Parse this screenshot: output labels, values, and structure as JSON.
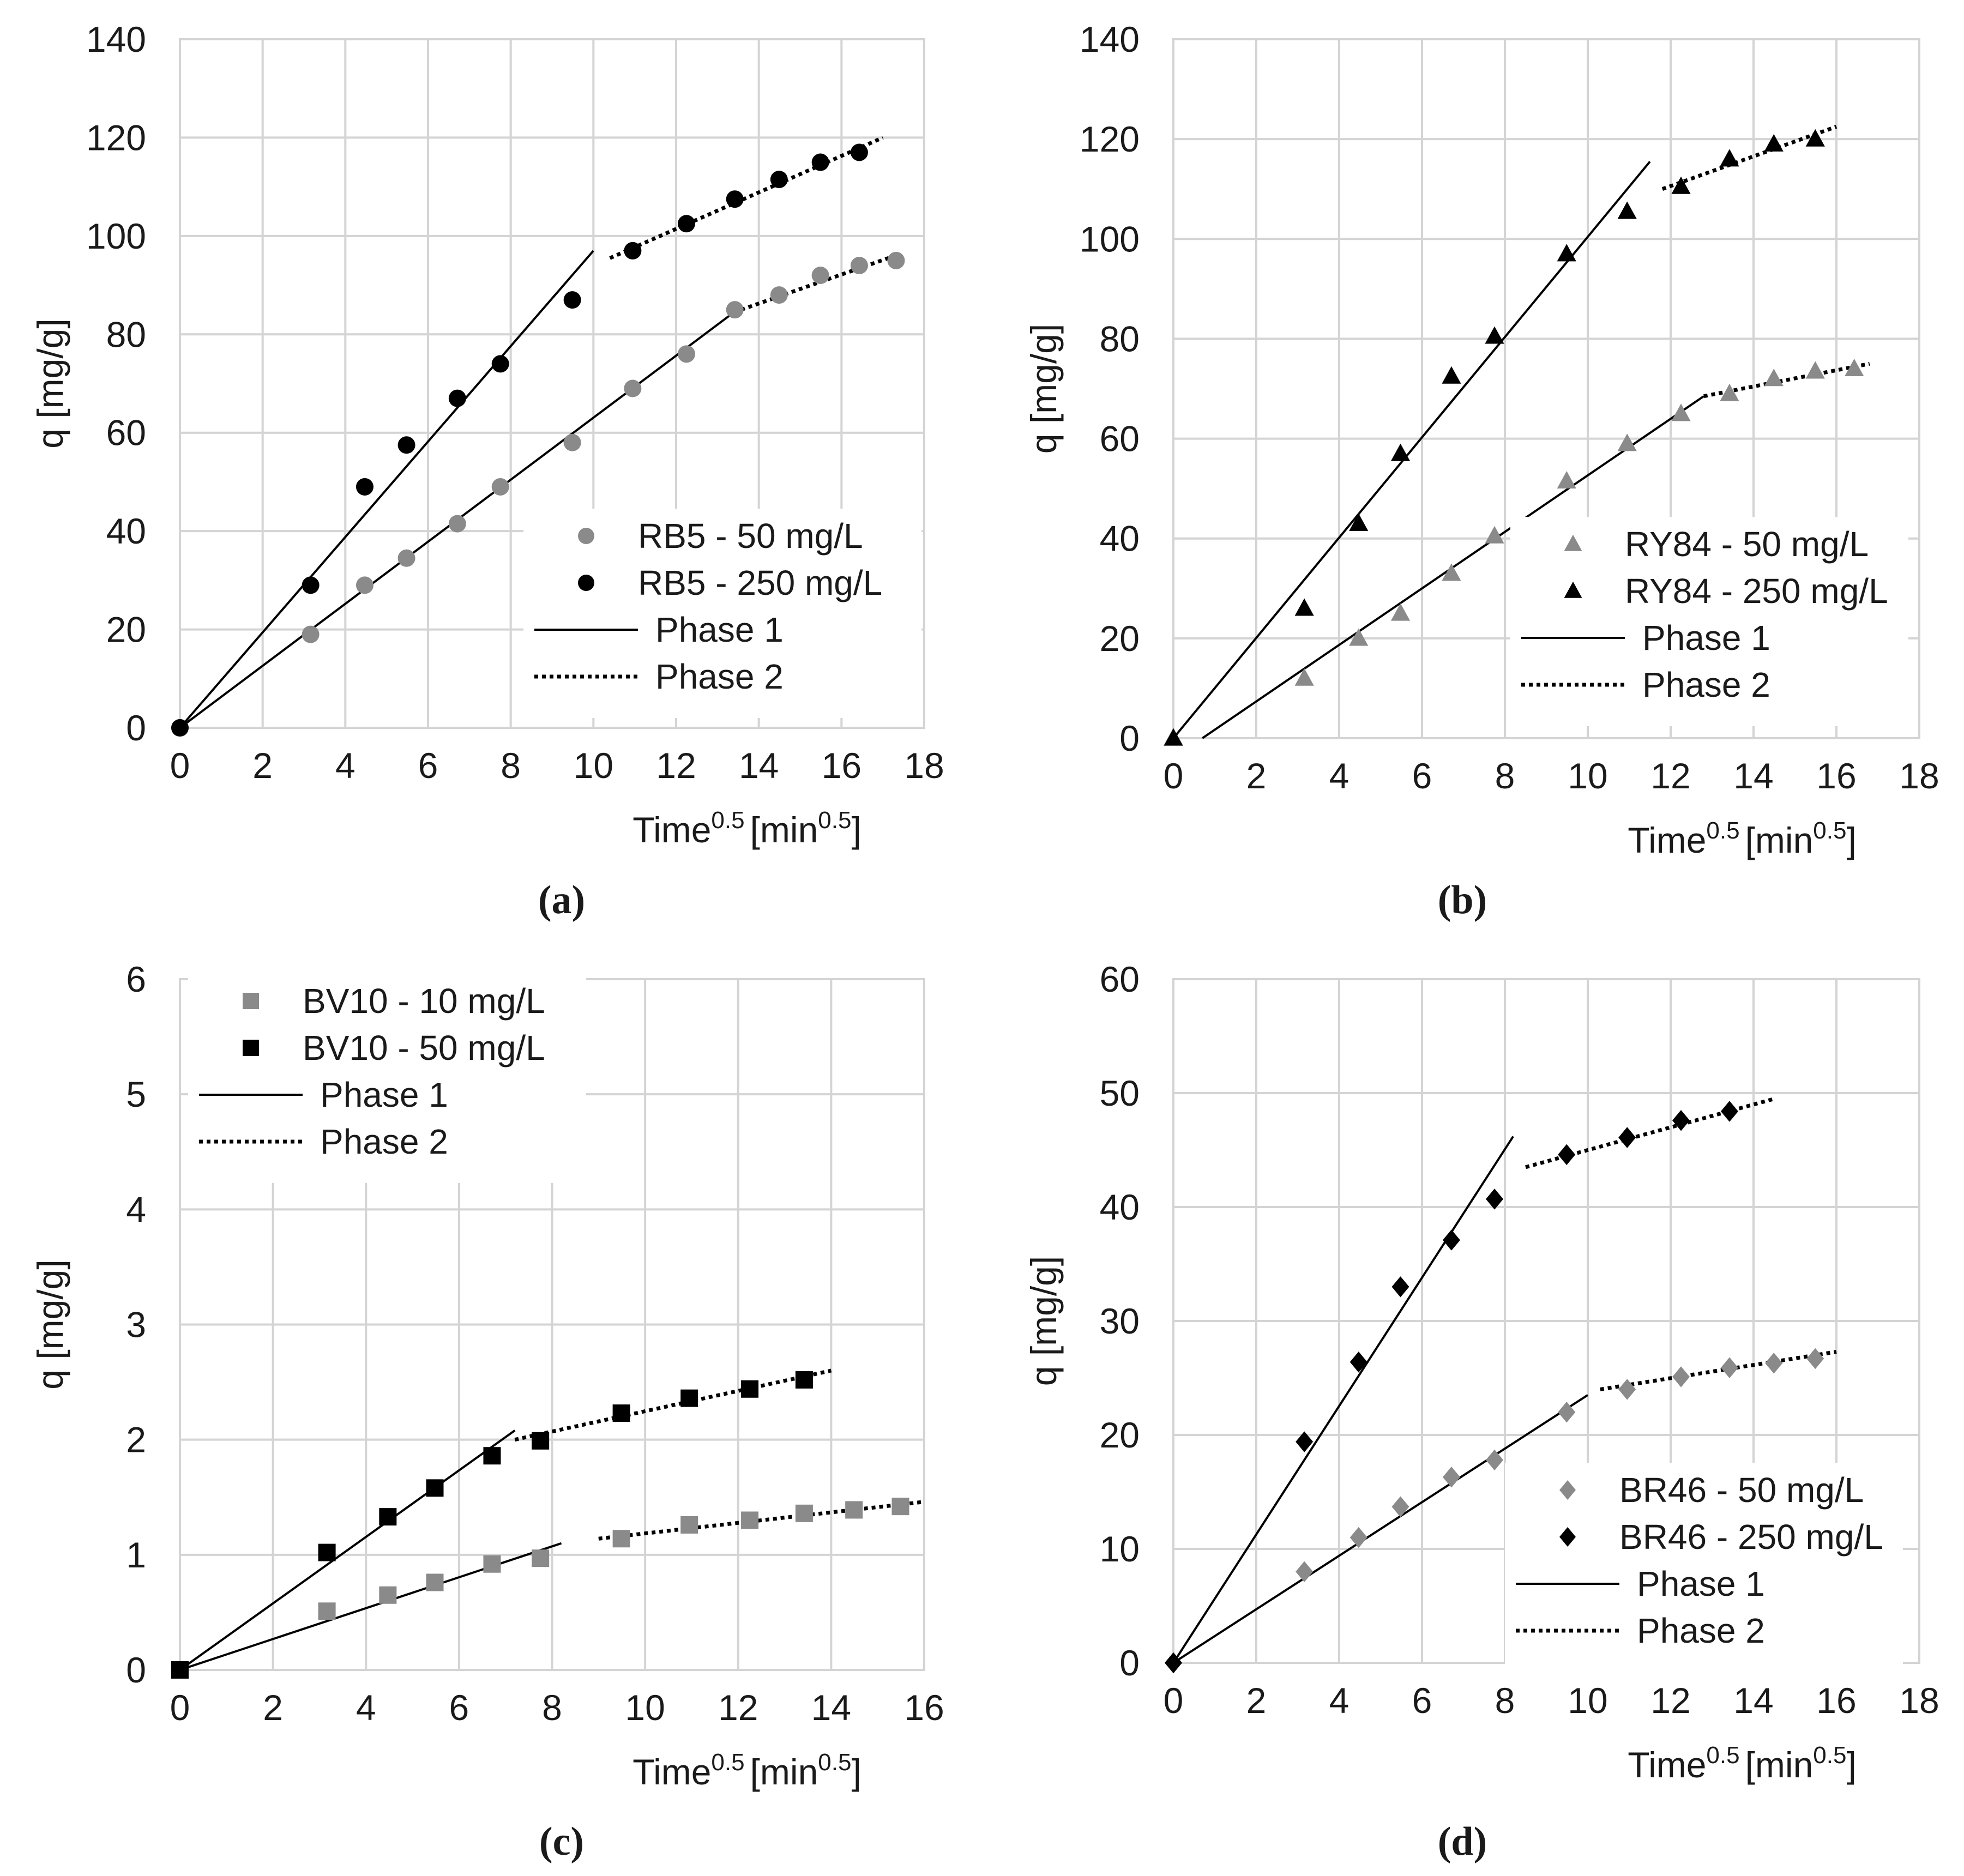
{
  "chart_data": [
    {
      "id": "a",
      "type": "scatter",
      "panel_label": "(a)",
      "xlabel": "Time",
      "xlabel_sup": "0.5",
      "xlabel_unit": "[min",
      "xlabel_unit_sup": "0.5",
      "xlabel_close": "]",
      "ylabel": "q [mg/g]",
      "xlim": [
        0,
        18
      ],
      "ylim": [
        0,
        140
      ],
      "xticks": [
        "0",
        "2",
        "4",
        "6",
        "8",
        "10",
        "12",
        "14",
        "16",
        "18"
      ],
      "yticks": [
        "0",
        "20",
        "40",
        "60",
        "80",
        "100",
        "120",
        "140"
      ],
      "grid": true,
      "legend_position": "lower-right",
      "legend": {
        "series": [
          "RB5 - 50 mg/L",
          "RB5 - 250 mg/L"
        ],
        "phase1": "Phase 1",
        "phase2": "Phase 2"
      },
      "series": [
        {
          "name": "RB5 - 50 mg/L",
          "marker": "circle",
          "color": "#8a8a8a",
          "x": [
            0,
            3.16,
            4.47,
            5.48,
            6.71,
            7.75,
            9.49,
            10.95,
            12.25,
            13.42,
            14.49,
            15.49,
            16.43,
            17.32
          ],
          "y": [
            0,
            19,
            29,
            34.5,
            41.5,
            49,
            58,
            69,
            76,
            85,
            88,
            92,
            94,
            95
          ]
        },
        {
          "name": "RB5 - 250 mg/L",
          "marker": "circle",
          "color": "#000000",
          "x": [
            0,
            3.16,
            4.47,
            5.48,
            6.71,
            7.75,
            9.49,
            10.95,
            12.25,
            13.42,
            14.49,
            15.49,
            16.43
          ],
          "y": [
            0,
            29,
            49,
            57.5,
            67,
            74,
            87,
            97,
            102.5,
            107.5,
            111.5,
            115,
            117
          ]
        }
      ],
      "fit_lines": [
        {
          "phase": "Phase 1",
          "x": [
            0,
            10
          ],
          "y": [
            0,
            97
          ]
        },
        {
          "phase": "Phase 1",
          "x": [
            0,
            13.4
          ],
          "y": [
            0,
            84.5
          ]
        },
        {
          "phase": "Phase 2",
          "x": [
            10.4,
            17
          ],
          "y": [
            95.5,
            120
          ]
        },
        {
          "phase": "Phase 2",
          "x": [
            13.4,
            17.3
          ],
          "y": [
            84.5,
            96
          ]
        }
      ]
    },
    {
      "id": "b",
      "type": "scatter",
      "panel_label": "(b)",
      "xlabel": "Time",
      "xlabel_sup": "0.5",
      "xlabel_unit": "[min",
      "xlabel_unit_sup": "0.5",
      "xlabel_close": "]",
      "ylabel": "q [mg/g]",
      "xlim": [
        0,
        18
      ],
      "ylim": [
        0,
        140
      ],
      "xticks": [
        "0",
        "2",
        "4",
        "6",
        "8",
        "10",
        "12",
        "14",
        "16",
        "18"
      ],
      "yticks": [
        "0",
        "20",
        "40",
        "60",
        "80",
        "100",
        "120",
        "140"
      ],
      "grid": true,
      "legend_position": "lower-right",
      "legend": {
        "series": [
          "RY84 - 50 mg/L",
          "RY84 - 250 mg/L"
        ],
        "phase1": "Phase 1",
        "phase2": "Phase 2"
      },
      "series": [
        {
          "name": "RY84 - 50 mg/L",
          "marker": "triangle",
          "color": "#8a8a8a",
          "x": [
            0,
            3.16,
            4.47,
            5.48,
            6.71,
            7.75,
            9.49,
            10.95,
            12.25,
            13.42,
            14.49,
            15.49,
            16.43
          ],
          "y": [
            0,
            12,
            20,
            25,
            33,
            40.5,
            51.5,
            59,
            65,
            69,
            72,
            73.5,
            74
          ]
        },
        {
          "name": "RY84 - 250 mg/L",
          "marker": "triangle",
          "color": "#000000",
          "x": [
            0,
            3.16,
            4.47,
            5.48,
            6.71,
            7.75,
            9.49,
            10.95,
            12.25,
            13.42,
            14.49,
            15.49
          ],
          "y": [
            0,
            26,
            43,
            57,
            72.5,
            80.5,
            97,
            105.5,
            110.5,
            116,
            119,
            120
          ]
        }
      ],
      "fit_lines": [
        {
          "phase": "Phase 1",
          "x": [
            0,
            11.5
          ],
          "y": [
            0,
            115.5
          ]
        },
        {
          "phase": "Phase 1",
          "x": [
            0.7,
            12.8
          ],
          "y": [
            0,
            68.5
          ]
        },
        {
          "phase": "Phase 2",
          "x": [
            11.8,
            16
          ],
          "y": [
            110,
            122.5
          ]
        },
        {
          "phase": "Phase 2",
          "x": [
            12.8,
            16.8
          ],
          "y": [
            68.5,
            75
          ]
        }
      ]
    },
    {
      "id": "c",
      "type": "scatter",
      "panel_label": "(c)",
      "xlabel": "Time",
      "xlabel_sup": "0.5",
      "xlabel_unit": "[min",
      "xlabel_unit_sup": "0.5",
      "xlabel_close": "]",
      "ylabel": "q [mg/g]",
      "xlim": [
        0,
        16
      ],
      "ylim": [
        0,
        6
      ],
      "xticks": [
        "0",
        "2",
        "4",
        "6",
        "8",
        "10",
        "12",
        "14",
        "16"
      ],
      "yticks": [
        "0",
        "1",
        "2",
        "3",
        "4",
        "5",
        "6"
      ],
      "grid": true,
      "legend_position": "upper-left",
      "legend": {
        "series": [
          "BV10 - 10 mg/L",
          "BV10 - 50 mg/L"
        ],
        "phase1": "Phase 1",
        "phase2": "Phase 2"
      },
      "series": [
        {
          "name": "BV10 - 10 mg/L",
          "marker": "square",
          "color": "#8a8a8a",
          "x": [
            0,
            3.16,
            4.47,
            5.48,
            6.71,
            7.75,
            9.49,
            10.95,
            12.25,
            13.42,
            14.49,
            15.49
          ],
          "y": [
            0,
            0.51,
            0.65,
            0.76,
            0.92,
            0.97,
            1.14,
            1.26,
            1.3,
            1.36,
            1.39,
            1.42
          ]
        },
        {
          "name": "BV10 - 50 mg/L",
          "marker": "square",
          "color": "#000000",
          "x": [
            0,
            3.16,
            4.47,
            5.48,
            6.71,
            7.75,
            9.49,
            10.95,
            12.25,
            13.42
          ],
          "y": [
            0,
            1.02,
            1.33,
            1.58,
            1.86,
            1.99,
            2.23,
            2.36,
            2.44,
            2.52
          ]
        }
      ],
      "fit_lines": [
        {
          "phase": "Phase 1",
          "x": [
            0,
            7.2
          ],
          "y": [
            0,
            2.08
          ]
        },
        {
          "phase": "Phase 1",
          "x": [
            0,
            8.2
          ],
          "y": [
            0,
            1.1
          ]
        },
        {
          "phase": "Phase 2",
          "x": [
            7.2,
            14
          ],
          "y": [
            2.0,
            2.6
          ]
        },
        {
          "phase": "Phase 2",
          "x": [
            9,
            16
          ],
          "y": [
            1.14,
            1.46
          ]
        }
      ]
    },
    {
      "id": "d",
      "type": "scatter",
      "panel_label": "(d)",
      "xlabel": "Time",
      "xlabel_sup": "0.5",
      "xlabel_unit": "[min",
      "xlabel_unit_sup": "0.5",
      "xlabel_close": "]",
      "ylabel": "q [mg/g]",
      "xlim": [
        0,
        18
      ],
      "ylim": [
        0,
        60
      ],
      "xticks": [
        "0",
        "2",
        "4",
        "6",
        "8",
        "10",
        "12",
        "14",
        "16",
        "18"
      ],
      "yticks": [
        "0",
        "10",
        "20",
        "30",
        "40",
        "50",
        "60"
      ],
      "grid": true,
      "legend_position": "lower-right",
      "legend": {
        "series": [
          "BR46 - 50 mg/L",
          "BR46 - 250 mg/L"
        ],
        "phase1": "Phase 1",
        "phase2": "Phase 2"
      },
      "series": [
        {
          "name": "BR46 - 50 mg/L",
          "marker": "diamond",
          "color": "#8a8a8a",
          "x": [
            0,
            3.16,
            4.47,
            5.48,
            6.71,
            7.75,
            9.49,
            10.95,
            12.25,
            13.42,
            14.49,
            15.49
          ],
          "y": [
            0,
            8,
            11,
            13.7,
            16.3,
            17.8,
            22,
            24,
            25.1,
            25.9,
            26.3,
            26.7
          ]
        },
        {
          "name": "BR46 - 250 mg/L",
          "marker": "diamond",
          "color": "#000000",
          "x": [
            0,
            3.16,
            4.47,
            5.48,
            6.71,
            7.75,
            9.49,
            10.95,
            12.25,
            13.42
          ],
          "y": [
            0,
            19.4,
            26.4,
            33,
            37.1,
            40.7,
            44.6,
            46.1,
            47.6,
            48.4
          ]
        }
      ],
      "fit_lines": [
        {
          "phase": "Phase 1",
          "x": [
            0,
            8.2
          ],
          "y": [
            0,
            46.2
          ]
        },
        {
          "phase": "Phase 1",
          "x": [
            0,
            10
          ],
          "y": [
            0,
            23.5
          ]
        },
        {
          "phase": "Phase 2",
          "x": [
            8.5,
            14.5
          ],
          "y": [
            43.5,
            49.5
          ]
        },
        {
          "phase": "Phase 2",
          "x": [
            10.3,
            16
          ],
          "y": [
            24,
            27.3
          ]
        }
      ]
    }
  ]
}
